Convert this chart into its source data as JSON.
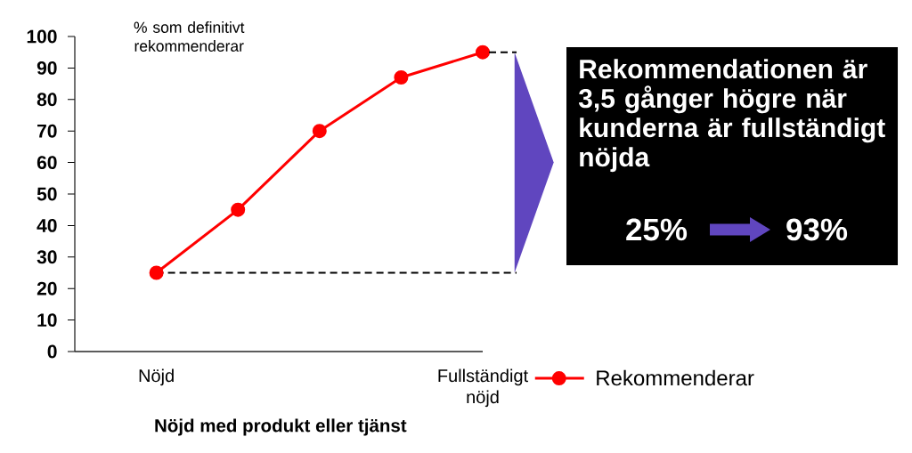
{
  "chart_data": {
    "type": "line",
    "ylabel": "% som definitivt rekommenderar",
    "xlabel": "Nöjd med produkt eller tjänst",
    "categories": [
      "Nöjd",
      null,
      null,
      null,
      "Fullständigt nöjd"
    ],
    "series": [
      {
        "name": "Rekommenderar",
        "color": "#ff0000",
        "values": [
          25,
          45,
          70,
          87,
          95
        ]
      }
    ],
    "ylim": [
      0,
      100
    ],
    "yticks": [
      0,
      10,
      20,
      30,
      40,
      50,
      60,
      70,
      80,
      90,
      100
    ],
    "marker": "circle",
    "line_style": "solid",
    "legend": "bottom right",
    "ref_lines": [
      {
        "axis": "y",
        "value": 25,
        "color": "#000000",
        "line_style": "dashed"
      }
    ],
    "annotations": [
      "Rekommendationen är 3,5 gånger högre när kunderna är fullständigt nöjda",
      "25%",
      "93%"
    ]
  }
}
